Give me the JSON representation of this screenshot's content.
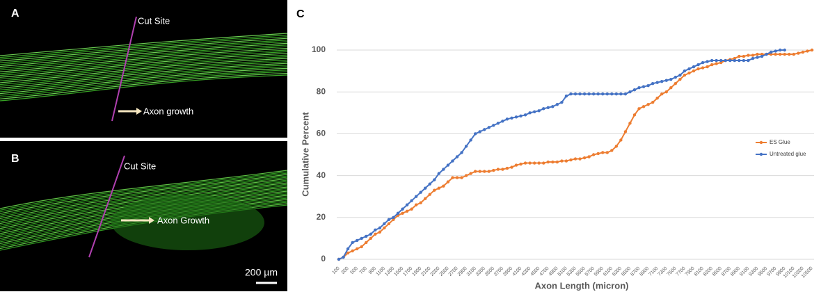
{
  "panels": [
    {
      "label": "A",
      "annotations": [
        "Cut Site",
        "Axon growth"
      ]
    },
    {
      "label": "B",
      "annotations": [
        "Cut Site",
        "Axon Growth"
      ],
      "scale_bar": "200 µm"
    }
  ],
  "chart_data": {
    "type": "line",
    "panel_label": "C",
    "xlabel": "Axon Length (micron)",
    "ylabel": "Cumulative Percent",
    "categories": [
      "100",
      null,
      "300",
      null,
      "500",
      null,
      "700",
      null,
      "900",
      null,
      "1100",
      null,
      "1300",
      null,
      "1500",
      null,
      "1700",
      null,
      "1900",
      null,
      "2100",
      null,
      "2300",
      null,
      "2500",
      null,
      "2700",
      null,
      "2900",
      null,
      "3100",
      null,
      "3300",
      null,
      "3500",
      null,
      "3700",
      null,
      "3900",
      null,
      "4100",
      null,
      "4300",
      null,
      "4500",
      null,
      "4700",
      null,
      "4900",
      null,
      "5100",
      null,
      "5300",
      null,
      "5500",
      null,
      "5700",
      null,
      "5900",
      null,
      "6100",
      null,
      "6300",
      null,
      "6500",
      null,
      "6700",
      null,
      "6900",
      null,
      "7100",
      null,
      "7300",
      null,
      "7500",
      null,
      "7700",
      null,
      "7900",
      null,
      "8100",
      null,
      "8300",
      null,
      "8500",
      null,
      "8700",
      null,
      "8900",
      null,
      "9100",
      null,
      "9300",
      null,
      "9500",
      null,
      "9700",
      null,
      "9900",
      null,
      "10100",
      null,
      "10300",
      null,
      "10500"
    ],
    "series": [
      {
        "name": "ES Glue",
        "color": "#ed7d31",
        "values": [
          0,
          1,
          3,
          4,
          5,
          6,
          8,
          10,
          12,
          13,
          15,
          17,
          19,
          21,
          22,
          23,
          24,
          26,
          27,
          29,
          31,
          33,
          34,
          35,
          37,
          39,
          39,
          39,
          40,
          41,
          42,
          42,
          42,
          42,
          42.5,
          43,
          43,
          43.5,
          44,
          45,
          45.5,
          46,
          46,
          46,
          46,
          46,
          46.5,
          46.5,
          46.5,
          47,
          47,
          47.5,
          48,
          48,
          48.5,
          49,
          50,
          50.5,
          51,
          51,
          52,
          54,
          57,
          61,
          65,
          69,
          72,
          73,
          74,
          75,
          77,
          79,
          80,
          82,
          84,
          86,
          88,
          89,
          90,
          91,
          91.5,
          92,
          93,
          93.5,
          94,
          95,
          95.5,
          96,
          97,
          97,
          97.5,
          97.5,
          98,
          98,
          98,
          98,
          98,
          98,
          98,
          98,
          98,
          98.5,
          99,
          99.5,
          100
        ]
      },
      {
        "name": "Untreated glue",
        "color": "#4472c4",
        "values": [
          0,
          1,
          5,
          8,
          9,
          10,
          11,
          12,
          14,
          15,
          17,
          19,
          20,
          22,
          24,
          26,
          28,
          30,
          32,
          34,
          36,
          38,
          41,
          43,
          45,
          47,
          49,
          51,
          54,
          57,
          60,
          61,
          62,
          63,
          64,
          65,
          66,
          67,
          67.5,
          68,
          68.5,
          69,
          70,
          70.5,
          71,
          72,
          72.5,
          73,
          74,
          75,
          78,
          79,
          79,
          79,
          79,
          79,
          79,
          79,
          79,
          79,
          79,
          79,
          79,
          79,
          80,
          81,
          82,
          82.5,
          83,
          84,
          84.5,
          85,
          85.5,
          86,
          87,
          88,
          90,
          91,
          92,
          93,
          94,
          94.5,
          95,
          95,
          95,
          95,
          95,
          95,
          95,
          95,
          95,
          96,
          96.5,
          97,
          98,
          99,
          99.5,
          100,
          100,
          null,
          null,
          null,
          null,
          null,
          null
        ]
      }
    ],
    "ylim": [
      0,
      100
    ],
    "yticks": [
      0,
      20,
      40,
      60,
      80,
      100
    ],
    "grid": true,
    "legend": "right"
  }
}
